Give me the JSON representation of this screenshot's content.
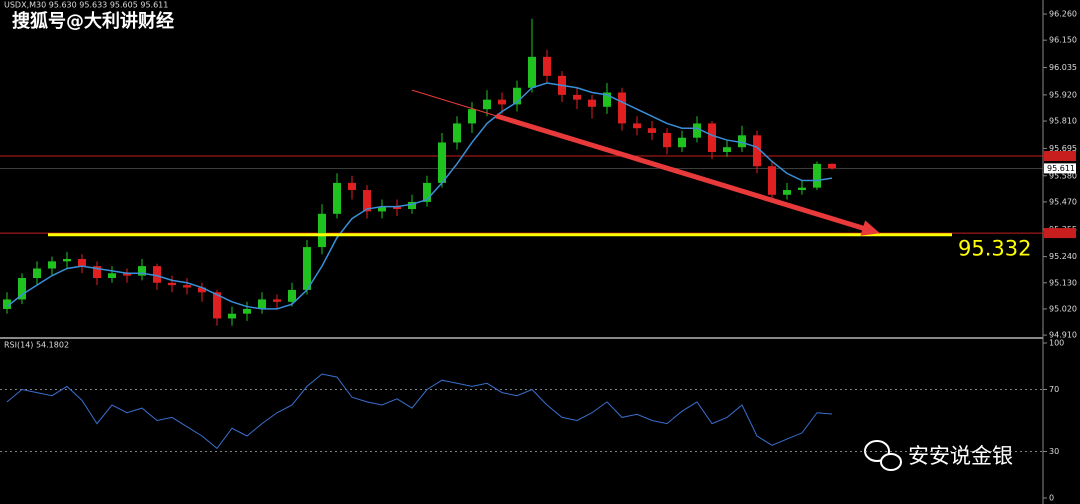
{
  "watermark": "搜狐号@大利讲财经",
  "brand": "安安说金银",
  "chart_data": [
    {
      "type": "candlestick",
      "header": "USDX,M30  95.630 95.633 95.605 95.611",
      "up_color": "#1fc21f",
      "down_color": "#e02020",
      "candles": [
        [
          95.02,
          95.09,
          95.0,
          95.06
        ],
        [
          95.06,
          95.17,
          95.04,
          95.15
        ],
        [
          95.15,
          95.22,
          95.12,
          95.19
        ],
        [
          95.19,
          95.24,
          95.16,
          95.22
        ],
        [
          95.22,
          95.26,
          95.19,
          95.23
        ],
        [
          95.23,
          95.25,
          95.17,
          95.2
        ],
        [
          95.2,
          95.22,
          95.12,
          95.15
        ],
        [
          95.15,
          95.2,
          95.13,
          95.17
        ],
        [
          95.17,
          95.19,
          95.13,
          95.16
        ],
        [
          95.16,
          95.23,
          95.14,
          95.2
        ],
        [
          95.2,
          95.21,
          95.1,
          95.13
        ],
        [
          95.13,
          95.16,
          95.09,
          95.12
        ],
        [
          95.12,
          95.15,
          95.08,
          95.11
        ],
        [
          95.11,
          95.13,
          95.05,
          95.09
        ],
        [
          95.09,
          95.1,
          94.95,
          94.98
        ],
        [
          94.98,
          95.03,
          94.95,
          95.0
        ],
        [
          95.0,
          95.05,
          94.97,
          95.02
        ],
        [
          95.02,
          95.09,
          95.0,
          95.06
        ],
        [
          95.06,
          95.08,
          95.02,
          95.05
        ],
        [
          95.05,
          95.13,
          95.03,
          95.1
        ],
        [
          95.1,
          95.31,
          95.08,
          95.28
        ],
        [
          95.28,
          95.46,
          95.25,
          95.42
        ],
        [
          95.42,
          95.59,
          95.4,
          95.55
        ],
        [
          95.55,
          95.58,
          95.48,
          95.52
        ],
        [
          95.52,
          95.54,
          95.4,
          95.43
        ],
        [
          95.43,
          95.48,
          95.4,
          95.45
        ],
        [
          95.45,
          95.48,
          95.41,
          95.44
        ],
        [
          95.44,
          95.5,
          95.42,
          95.47
        ],
        [
          95.47,
          95.58,
          95.45,
          95.55
        ],
        [
          95.55,
          95.76,
          95.53,
          95.72
        ],
        [
          95.72,
          95.83,
          95.69,
          95.8
        ],
        [
          95.8,
          95.89,
          95.76,
          95.86
        ],
        [
          95.86,
          95.94,
          95.83,
          95.9
        ],
        [
          95.9,
          95.93,
          95.84,
          95.88
        ],
        [
          95.88,
          95.98,
          95.85,
          95.95
        ],
        [
          95.95,
          96.24,
          95.93,
          96.08
        ],
        [
          96.08,
          96.11,
          95.97,
          96.0
        ],
        [
          96.0,
          96.02,
          95.89,
          95.92
        ],
        [
          95.92,
          95.95,
          95.86,
          95.9
        ],
        [
          95.9,
          95.92,
          95.82,
          95.87
        ],
        [
          95.87,
          95.97,
          95.84,
          95.93
        ],
        [
          95.93,
          95.95,
          95.77,
          95.8
        ],
        [
          95.8,
          95.83,
          95.75,
          95.78
        ],
        [
          95.78,
          95.81,
          95.73,
          95.76
        ],
        [
          95.76,
          95.78,
          95.67,
          95.7
        ],
        [
          95.7,
          95.77,
          95.68,
          95.74
        ],
        [
          95.74,
          95.83,
          95.72,
          95.8
        ],
        [
          95.8,
          95.81,
          95.65,
          95.68
        ],
        [
          95.68,
          95.73,
          95.66,
          95.7
        ],
        [
          95.7,
          95.79,
          95.68,
          95.75
        ],
        [
          95.75,
          95.77,
          95.59,
          95.62
        ],
        [
          95.62,
          95.64,
          95.48,
          95.5
        ],
        [
          95.5,
          95.55,
          95.48,
          95.52
        ],
        [
          95.52,
          95.56,
          95.5,
          95.53
        ],
        [
          95.53,
          95.64,
          95.52,
          95.63
        ],
        [
          95.63,
          95.633,
          95.605,
          95.611
        ]
      ],
      "ma": {
        "color": "#3a8fd8",
        "values": [
          95.03,
          95.08,
          95.12,
          95.16,
          95.19,
          95.2,
          95.19,
          95.18,
          95.17,
          95.17,
          95.16,
          95.14,
          95.13,
          95.11,
          95.08,
          95.05,
          95.03,
          95.02,
          95.02,
          95.04,
          95.1,
          95.2,
          95.32,
          95.4,
          95.44,
          95.45,
          95.45,
          95.46,
          95.48,
          95.55,
          95.63,
          95.72,
          95.8,
          95.85,
          95.89,
          95.95,
          95.97,
          95.96,
          95.95,
          95.93,
          95.92,
          95.89,
          95.86,
          95.83,
          95.8,
          95.78,
          95.78,
          95.75,
          95.73,
          95.72,
          95.7,
          95.64,
          95.59,
          95.56,
          95.56,
          95.57
        ]
      },
      "ylim": [
        94.902,
        96.319
      ],
      "yticks": [
        {
          "value": 96.26,
          "label": "96.260"
        },
        {
          "value": 96.15,
          "label": "96.150"
        },
        96.035,
        {
          "value": 95.92,
          "label": "95.920"
        },
        {
          "value": 95.81,
          "label": "95.810"
        },
        95.695,
        {
          "value": 95.58,
          "label": "95.580"
        },
        {
          "value": 95.47,
          "label": "95.470"
        },
        95.355,
        {
          "value": 95.24,
          "label": "95.240"
        },
        {
          "value": 95.13,
          "label": "95.130"
        },
        {
          "value": 95.02,
          "label": "95.020"
        },
        {
          "value": 94.91,
          "label": "94.910"
        }
      ],
      "current_price": 95.611,
      "red_levels": {
        "color": "#c81e1e",
        "values": [
          95.663,
          95.339
        ]
      },
      "support": {
        "value": 95.332,
        "color": "#ffff00"
      },
      "arrow": {
        "color": "#e83a3a",
        "from": {
          "index": 27,
          "price": 95.94
        },
        "to": {
          "index": 58.2,
          "price": 95.338
        }
      }
    },
    {
      "type": "line",
      "label": "RSI(14) 54.1802",
      "color": "#3a6fd0",
      "values": [
        62,
        70,
        68,
        66,
        72,
        63,
        48,
        60,
        55,
        58,
        50,
        52,
        46,
        40,
        32,
        45,
        40,
        48,
        55,
        60,
        72,
        80,
        78,
        65,
        62,
        60,
        64,
        58,
        70,
        76,
        74,
        72,
        74,
        68,
        66,
        70,
        60,
        52,
        50,
        55,
        62,
        52,
        54,
        50,
        48,
        56,
        62,
        48,
        52,
        60,
        40,
        34,
        38,
        42,
        55,
        54.18
      ],
      "ylim": [
        0,
        100
      ],
      "yticks": [
        100,
        70,
        30,
        0
      ],
      "levels": [
        70,
        30
      ]
    }
  ]
}
